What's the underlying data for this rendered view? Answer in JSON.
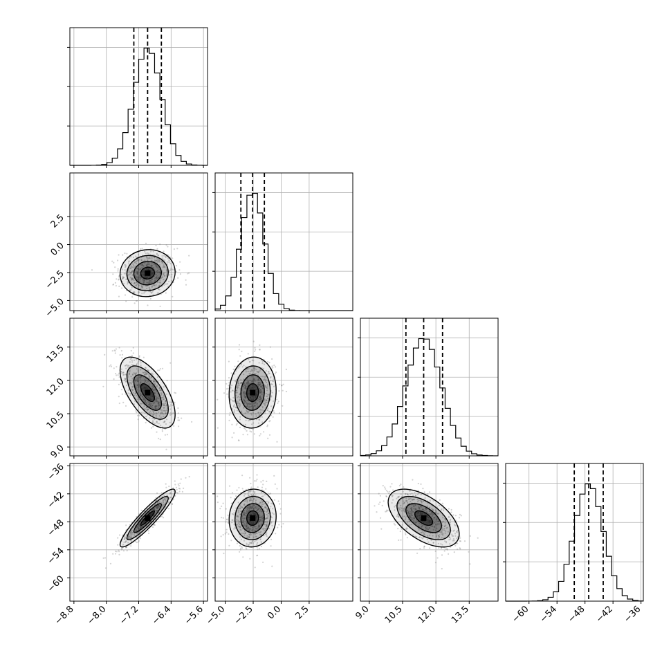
{
  "chart_data": {
    "type": "corner",
    "parameters": [
      {
        "mean": -6.98,
        "sigma": 0.34,
        "quantiles": [
          -7.32,
          -6.98,
          -6.64
        ],
        "range": [
          -8.9,
          -5.5
        ],
        "ticks": [
          -8.8,
          -8.0,
          -7.2,
          -6.4,
          -5.6
        ],
        "tick_labels": [
          "−8.8",
          "−8.0",
          "−7.2",
          "−6.4",
          "−5.6"
        ]
      },
      {
        "mean": -2.55,
        "sigma": 1.05,
        "quantiles": [
          -3.6,
          -2.55,
          -1.5
        ],
        "range": [
          -5.9,
          6.4
        ],
        "ticks": [
          -5.0,
          -2.5,
          0.0,
          2.5
        ],
        "tick_labels": [
          "−5.0",
          "−2.5",
          "0.0",
          "2.5"
        ]
      },
      {
        "mean": 11.45,
        "sigma": 0.8,
        "quantiles": [
          10.65,
          11.45,
          12.3
        ],
        "range": [
          8.6,
          14.8
        ],
        "ticks": [
          9.0,
          10.5,
          12.0,
          13.5
        ],
        "tick_labels": [
          "9.0",
          "10.5",
          "12.0",
          "13.5"
        ]
      },
      {
        "mean": -47.2,
        "sigma": 3.1,
        "quantiles": [
          -50.3,
          -47.2,
          -44.1
        ],
        "range": [
          -65,
          -35.5
        ],
        "ticks": [
          -60,
          -54,
          -48,
          -42,
          -36
        ],
        "tick_labels": [
          "−60",
          "−54",
          "−48",
          "−42",
          "−36"
        ]
      }
    ],
    "correlations": [
      [
        1,
        0.05,
        -0.62,
        0.92
      ],
      [
        0.05,
        1,
        0.05,
        0.05
      ],
      [
        -0.62,
        0.05,
        1,
        -0.55
      ],
      [
        0.92,
        0.05,
        -0.55,
        1
      ]
    ],
    "quantile_levels": [
      0.16,
      0.5,
      0.84
    ],
    "grid": true,
    "colors": {
      "points": "#7f7f7f",
      "contour": "#000000",
      "density": "#000000"
    }
  }
}
